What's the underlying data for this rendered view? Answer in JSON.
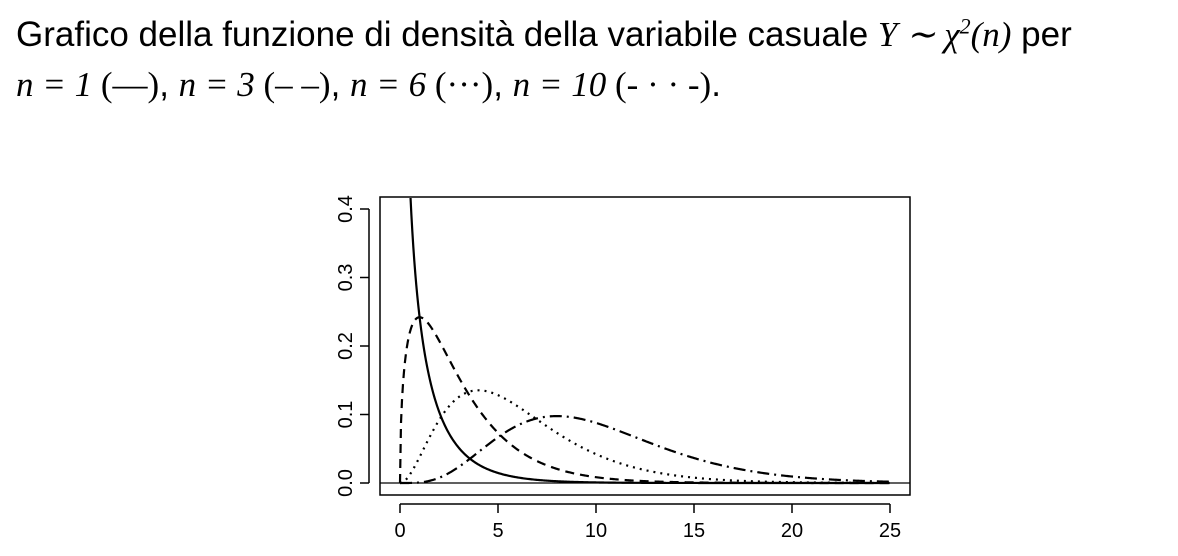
{
  "caption": {
    "line1_text": "Grafico della funzione di densità della variabile casuale",
    "line1_math": "Y ∼ χ",
    "line1_sup": "2",
    "line1_math_end": "(n)",
    "line1_end": "per",
    "line2": [
      {
        "math": "n = 1",
        "style": " (—)",
        "sep": ", "
      },
      {
        "math": "n = 3",
        "style": " (– –)",
        "sep": ", "
      },
      {
        "math": "n = 6",
        "style": " (···)",
        "sep": ", "
      },
      {
        "math": "n = 10",
        "style": " (- · · -)",
        "sep": "."
      }
    ]
  },
  "chart_data": {
    "type": "line",
    "title": "",
    "xlabel": "",
    "ylabel": "",
    "xlim": [
      0,
      25
    ],
    "ylim": [
      0,
      0.4
    ],
    "x_ticks": [
      "0",
      "5",
      "10",
      "15",
      "20",
      "25"
    ],
    "y_ticks": [
      "0.0",
      "0.1",
      "0.2",
      "0.3",
      "0.4"
    ],
    "grid": false,
    "x_step": 0.5,
    "series": [
      {
        "df": 1,
        "dash": "solid",
        "values": [
          0.4394,
          0.242,
          0.1539,
          0.1038,
          0.0721,
          0.051,
          0.0366,
          0.0265,
          0.0193,
          0.0141,
          0.0104,
          0.0077,
          0.0057,
          0.0042,
          0.0031,
          0.0023,
          0.0017,
          0.0013,
          0.001,
          0.0007,
          0.0006,
          0.0004,
          0.0003,
          0.0002,
          0.0002,
          0.0001,
          0.0001,
          0.0001,
          0.0001,
          0,
          0,
          0,
          0,
          0,
          0,
          0,
          0,
          0,
          0,
          0,
          0,
          0,
          0,
          0,
          0,
          0,
          0,
          0,
          0,
          0,
          0
        ]
      },
      {
        "df": 3,
        "dash": "dashed",
        "values": [
          0,
          0.2197,
          0.242,
          0.2308,
          0.2076,
          0.1804,
          0.1542,
          0.13,
          0.1084,
          0.0897,
          0.0736,
          0.06,
          0.0488,
          0.0394,
          0.0317,
          0.0254,
          0.0203,
          0.0162,
          0.0129,
          0.0102,
          0.0081,
          0.0064,
          0.005,
          0.004,
          0.0031,
          0.0024,
          0.0019,
          0.0015,
          0.0012,
          0.0009,
          0.0007,
          0.0006,
          0.0004,
          0.0003,
          0.0003,
          0.0002,
          0.0002,
          0.0001,
          0.0001,
          0.0001,
          0.0001,
          0,
          0,
          0,
          0,
          0,
          0,
          0,
          0,
          0,
          0
        ]
      },
      {
        "df": 6,
        "dash": "dotted",
        "values": [
          0,
          0.0097,
          0.0303,
          0.0531,
          0.0758,
          0.0956,
          0.112,
          0.1243,
          0.1329,
          0.1384,
          0.1409,
          0.1408,
          0.1387,
          0.1351,
          0.1304,
          0.1247,
          0.1185,
          0.112,
          0.1054,
          0.0988,
          0.092,
          0.0856,
          0.0793,
          0.0734,
          0.0676,
          0.0623,
          0.0572,
          0.0525,
          0.048,
          0.0439,
          0.04,
          0.0365,
          0.0333,
          0.0302,
          0.0274,
          0.0249,
          0.0225,
          0.0204,
          0.0184,
          0.0166,
          0.015,
          0.0135,
          0.0122,
          0.011,
          0.0099,
          0.0089,
          0.008,
          0.0072,
          0.0065,
          0.0058,
          0.0052
        ]
      },
      {
        "df": 10,
        "dash": "dotdash",
        "values": [
          0,
          0.0,
          0.0002,
          0.0009,
          0.0031,
          0.0066,
          0.0126,
          0.0202,
          0.0293,
          0.0394,
          0.0501,
          0.0602,
          0.0697,
          0.0778,
          0.0842,
          0.0889,
          0.0916,
          0.093,
          0.0931,
          0.092,
          0.0898,
          0.0868,
          0.0832,
          0.0791,
          0.0746,
          0.0702,
          0.0656,
          0.0608,
          0.0562,
          0.0518,
          0.0474,
          0.0432,
          0.0392,
          0.0355,
          0.032,
          0.0288,
          0.026,
          0.0232,
          0.0208,
          0.0185,
          0.0165,
          0.0146,
          0.013,
          0.0115,
          0.0101,
          0.0089,
          0.0079,
          0.0069,
          0.0061,
          0.0053,
          0.0047
        ]
      }
    ]
  }
}
